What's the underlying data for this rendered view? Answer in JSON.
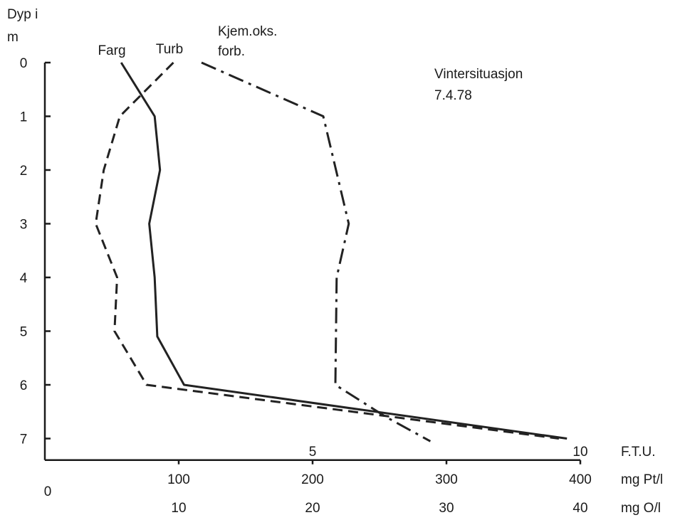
{
  "chart_data": {
    "type": "line",
    "title": "",
    "annotation": [
      "Vintersituasjon",
      "7.4.78"
    ],
    "y_axis": {
      "label_lines": [
        "Dyp i",
        "m"
      ],
      "range": [
        0,
        7.4
      ],
      "inverted": true,
      "ticks": [
        0,
        1,
        2,
        3,
        4,
        5,
        6,
        7
      ],
      "tick_labels": [
        "0",
        "1",
        "2",
        "3",
        "4",
        "5",
        "6",
        "7"
      ]
    },
    "x_axes": [
      {
        "key": "ftu",
        "unit_label": "F.T.U.",
        "range": [
          0,
          10
        ],
        "ticks": [
          5,
          10
        ],
        "tick_labels": [
          "5",
          "10"
        ]
      },
      {
        "key": "pt",
        "unit_label": "mg Pt/l",
        "range": [
          0,
          400
        ],
        "ticks": [
          100,
          200,
          300,
          400
        ],
        "tick_labels": [
          "100",
          "200",
          "300",
          "400"
        ],
        "origin_label": "0"
      },
      {
        "key": "o",
        "unit_label": "mg O/l",
        "range": [
          0,
          40
        ],
        "ticks": [
          10,
          20,
          30,
          40
        ],
        "tick_labels": [
          "10",
          "20",
          "30",
          "40"
        ]
      }
    ],
    "series": [
      {
        "name": "Farg",
        "axis": "pt",
        "dash": "solid",
        "points": [
          {
            "value": 57,
            "depth": 0.0
          },
          {
            "value": 82,
            "depth": 1.0
          },
          {
            "value": 86,
            "depth": 2.0
          },
          {
            "value": 78,
            "depth": 3.0
          },
          {
            "value": 82,
            "depth": 4.0
          },
          {
            "value": 84,
            "depth": 5.1
          },
          {
            "value": 104,
            "depth": 6.0
          },
          {
            "value": 390,
            "depth": 7.0
          }
        ]
      },
      {
        "name": "Turb",
        "axis": "ftu",
        "dash": "dashed",
        "points": [
          {
            "value": 2.4,
            "depth": 0.0
          },
          {
            "value": 1.4,
            "depth": 1.0
          },
          {
            "value": 1.1,
            "depth": 2.0
          },
          {
            "value": 0.95,
            "depth": 3.0
          },
          {
            "value": 1.35,
            "depth": 4.0
          },
          {
            "value": 1.3,
            "depth": 5.0
          },
          {
            "value": 1.9,
            "depth": 6.0
          },
          {
            "value": 9.6,
            "depth": 7.0
          }
        ]
      },
      {
        "name": "Kjem.oks. forb.",
        "name_lines": [
          "Kjem.oks.",
          "forb."
        ],
        "axis": "o",
        "dash": "dashdot",
        "points": [
          {
            "value": 11.7,
            "depth": 0.0
          },
          {
            "value": 20.8,
            "depth": 1.0
          },
          {
            "value": 22.7,
            "depth": 3.0
          },
          {
            "value": 21.8,
            "depth": 4.0
          },
          {
            "value": 21.7,
            "depth": 6.0
          },
          {
            "value": 25.5,
            "depth": 6.6
          },
          {
            "value": 28.8,
            "depth": 7.05
          }
        ]
      }
    ],
    "grid": false,
    "legend": "inline labels at top of lines"
  }
}
